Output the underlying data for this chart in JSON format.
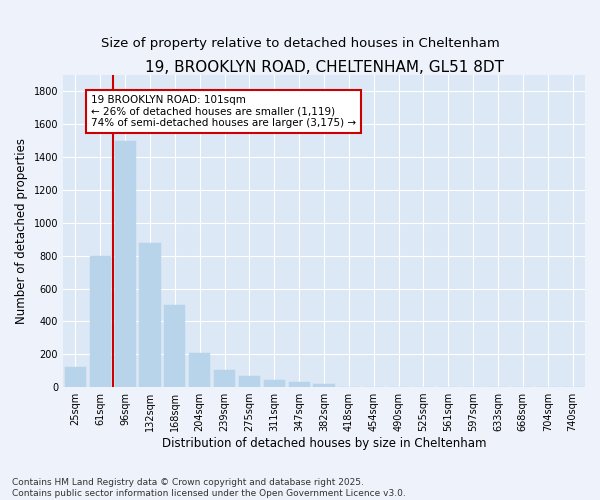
{
  "title": "19, BROOKLYN ROAD, CHELTENHAM, GL51 8DT",
  "subtitle": "Size of property relative to detached houses in Cheltenham",
  "xlabel": "Distribution of detached houses by size in Cheltenham",
  "ylabel": "Number of detached properties",
  "categories": [
    "25sqm",
    "61sqm",
    "96sqm",
    "132sqm",
    "168sqm",
    "204sqm",
    "239sqm",
    "275sqm",
    "311sqm",
    "347sqm",
    "382sqm",
    "418sqm",
    "454sqm",
    "490sqm",
    "525sqm",
    "561sqm",
    "597sqm",
    "633sqm",
    "668sqm",
    "704sqm",
    "740sqm"
  ],
  "values": [
    120,
    800,
    1500,
    880,
    500,
    210,
    105,
    65,
    45,
    30,
    20,
    0,
    0,
    0,
    0,
    0,
    0,
    0,
    0,
    0,
    0
  ],
  "bar_color": "#b8d4ea",
  "vline_bar_index": 2,
  "vline_color": "#cc0000",
  "annotation_text": "19 BROOKLYN ROAD: 101sqm\n← 26% of detached houses are smaller (1,119)\n74% of semi-detached houses are larger (3,175) →",
  "annotation_box_color": "#cc0000",
  "ylim": [
    0,
    1900
  ],
  "yticks": [
    0,
    200,
    400,
    600,
    800,
    1000,
    1200,
    1400,
    1600,
    1800
  ],
  "footer_line1": "Contains HM Land Registry data © Crown copyright and database right 2025.",
  "footer_line2": "Contains public sector information licensed under the Open Government Licence v3.0.",
  "background_color": "#eef2fa",
  "plot_bg_color": "#dce8f5",
  "grid_color": "#ffffff",
  "title_fontsize": 11,
  "subtitle_fontsize": 9.5,
  "axis_label_fontsize": 8.5,
  "tick_fontsize": 7,
  "annotation_fontsize": 7.5,
  "footer_fontsize": 6.5
}
